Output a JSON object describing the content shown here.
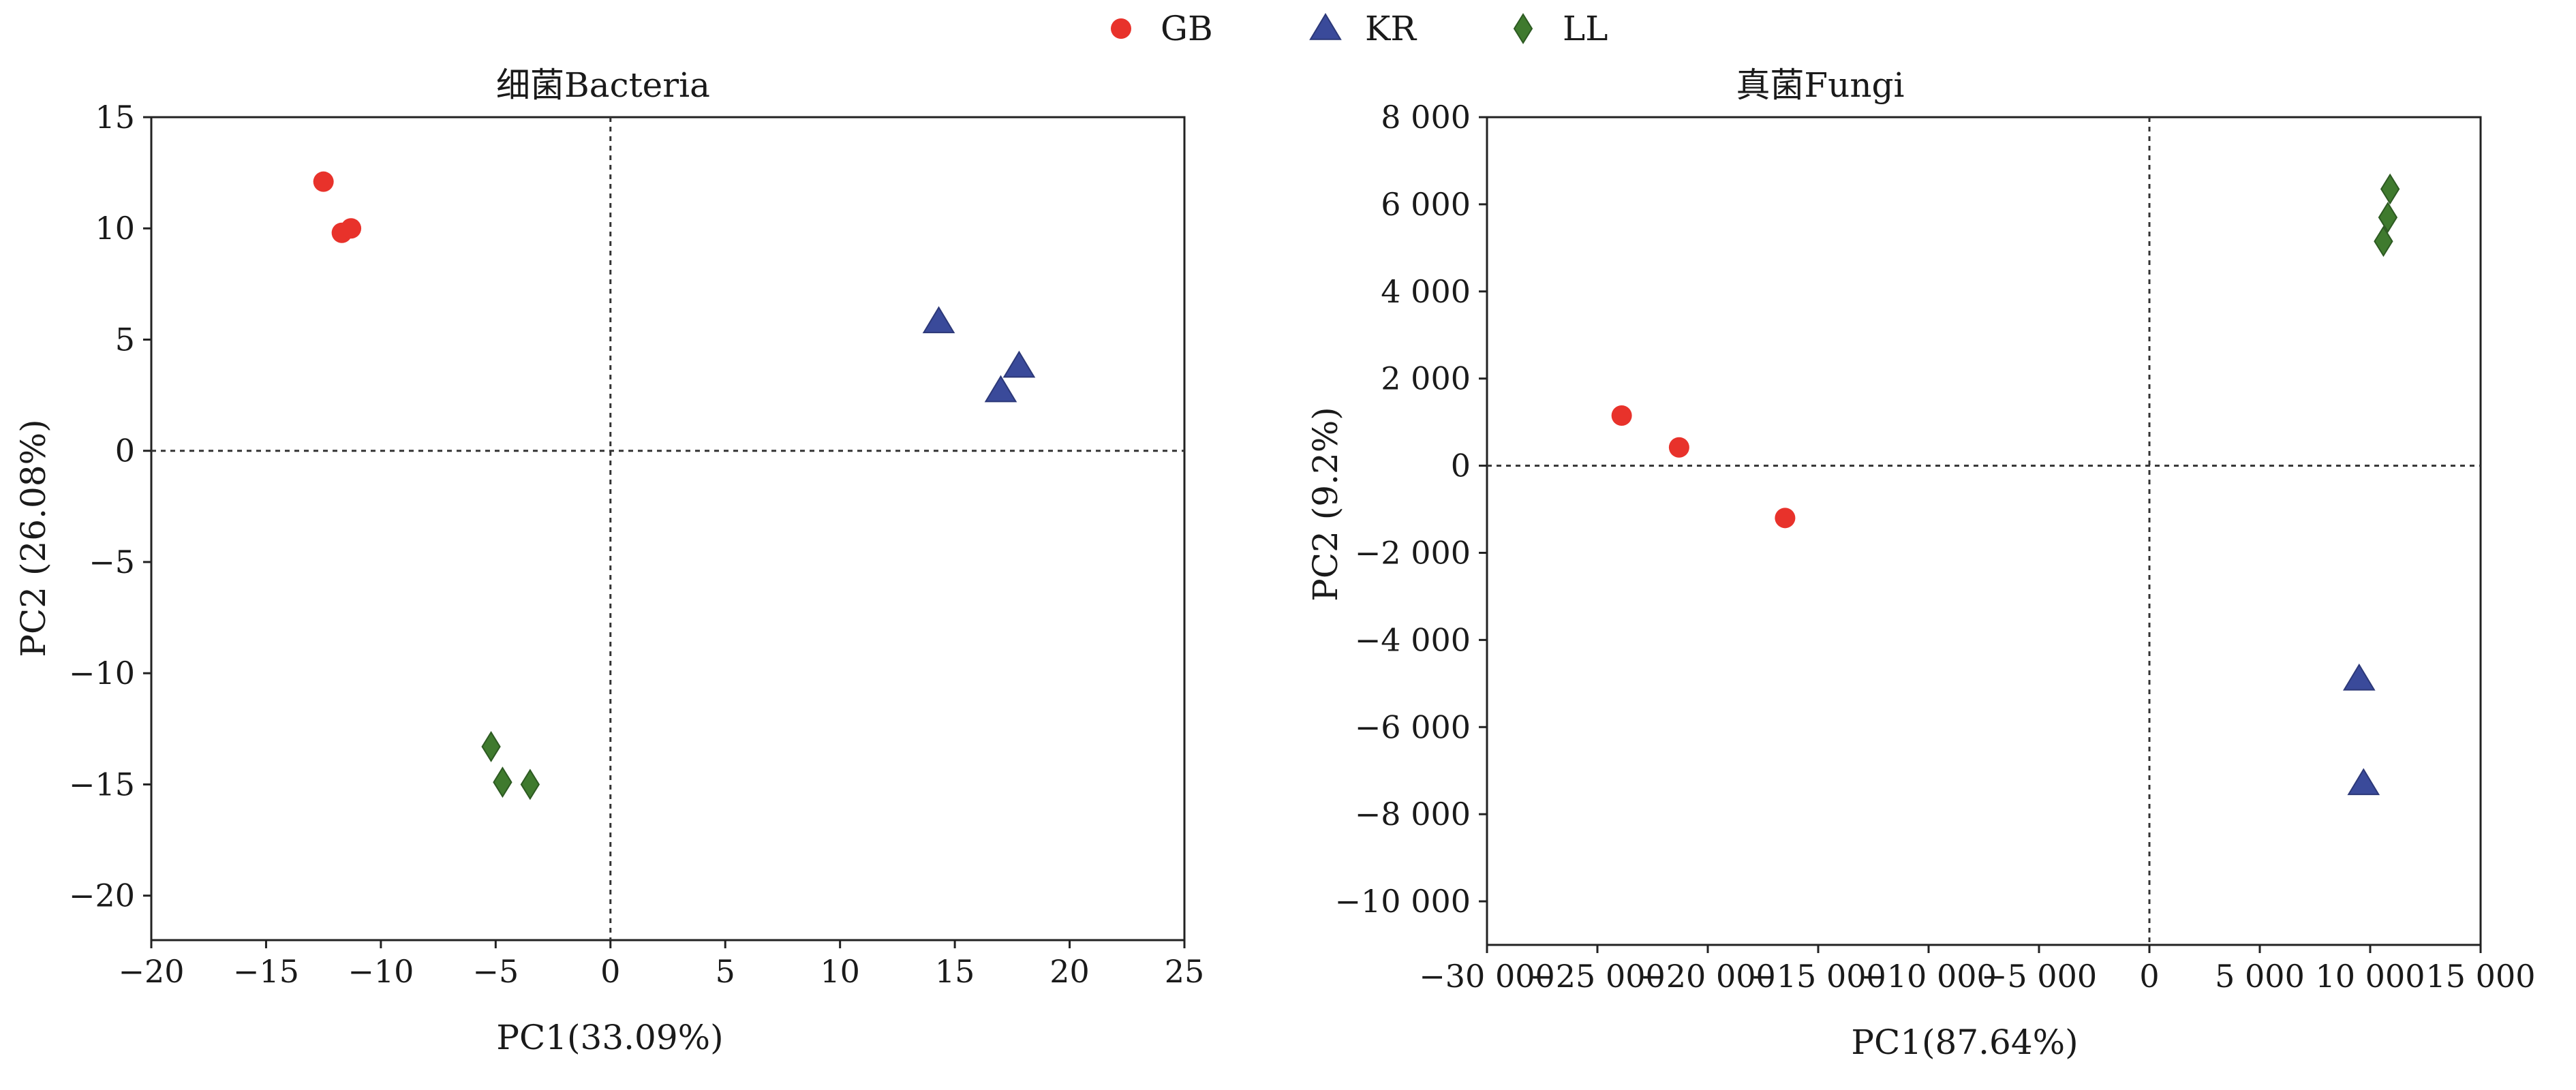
{
  "legend": {
    "entries": [
      {
        "name": "GB",
        "color": "#e8322b",
        "marker": "circle"
      },
      {
        "name": "KR",
        "color": "#3a4a9a",
        "marker": "triangle"
      },
      {
        "name": "LL",
        "color": "#3f7a2e",
        "marker": "diamond"
      }
    ],
    "placement": "top-center"
  },
  "chart_data": [
    {
      "type": "scatter",
      "title": "细菌Bacteria",
      "xlabel": "PC1(33.09%)",
      "ylabel": "PC2 (26.08%)",
      "xlim": [
        -20,
        25
      ],
      "ylim": [
        -22,
        15
      ],
      "xticks": [
        -20,
        -15,
        -10,
        -5,
        0,
        5,
        10,
        15,
        20,
        25
      ],
      "xtick_labels": [
        "−20",
        "−15",
        "−10",
        "−5",
        "0",
        "5",
        "10",
        "15",
        "20",
        "25"
      ],
      "yticks": [
        15,
        10,
        5,
        0,
        -5,
        -10,
        -15,
        -20
      ],
      "ytick_labels": [
        "15",
        "10",
        "5",
        "0",
        "−5",
        "−10",
        "−15",
        "−20"
      ],
      "zero_lines": true,
      "grid": false,
      "series": [
        {
          "name": "GB",
          "points": [
            [
              -12.5,
              12.1
            ],
            [
              -11.7,
              9.8
            ],
            [
              -11.3,
              10.0
            ]
          ]
        },
        {
          "name": "KR",
          "points": [
            [
              14.3,
              5.8
            ],
            [
              17.0,
              2.7
            ],
            [
              17.8,
              3.8
            ]
          ]
        },
        {
          "name": "LL",
          "points": [
            [
              -5.2,
              -13.3
            ],
            [
              -4.7,
              -14.9
            ],
            [
              -3.5,
              -15.0
            ]
          ]
        }
      ]
    },
    {
      "type": "scatter",
      "title": "真菌Fungi",
      "xlabel": "PC1(87.64%)",
      "ylabel": "PC2 (9.2%)",
      "xlim": [
        -30000,
        15000
      ],
      "ylim": [
        -11000,
        8000
      ],
      "xticks": [
        -30000,
        -25000,
        -20000,
        -15000,
        -10000,
        -5000,
        0,
        5000,
        10000,
        15000
      ],
      "xtick_labels": [
        "−30 000",
        "−25 000",
        "−20 000",
        "−15 000",
        "−10 000",
        "−5 000",
        "0",
        "5 000",
        "10 000",
        "15 000"
      ],
      "yticks": [
        8000,
        6000,
        4000,
        2000,
        0,
        -2000,
        -4000,
        -6000,
        -8000,
        -10000
      ],
      "ytick_labels": [
        "8 000",
        "6 000",
        "4 000",
        "2 000",
        "0",
        "−2 000",
        "−4 000",
        "−6 000",
        "−8 000",
        "−10 000"
      ],
      "zero_lines": true,
      "grid": false,
      "series": [
        {
          "name": "GB",
          "points": [
            [
              -23900,
              1150
            ],
            [
              -21300,
              420
            ],
            [
              -16500,
              -1200
            ]
          ]
        },
        {
          "name": "KR",
          "points": [
            [
              9500,
              -4900
            ],
            [
              9700,
              -7300
            ]
          ]
        },
        {
          "name": "LL",
          "points": [
            [
              10600,
              5150
            ],
            [
              10800,
              5700
            ],
            [
              10900,
              6350
            ]
          ]
        }
      ]
    }
  ]
}
